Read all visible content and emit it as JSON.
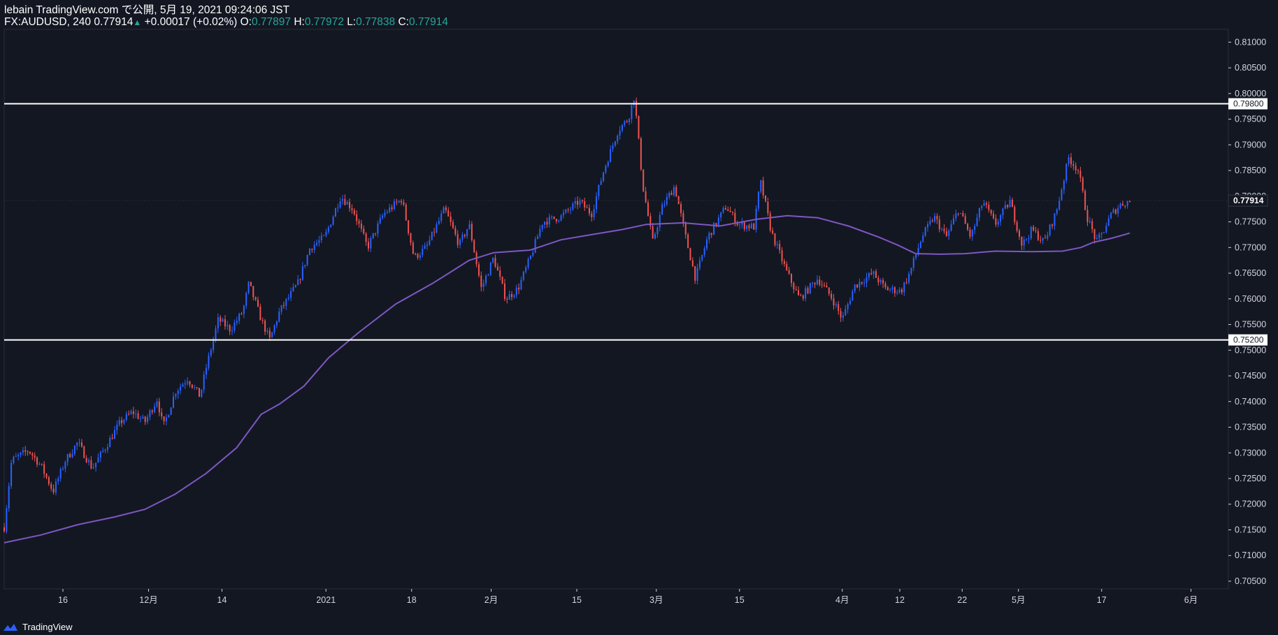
{
  "header": {
    "line1": "lebain TradingView.com で公開, 5月 19, 2021 09:24:06 JST",
    "symbol": "FX:AUDUSD, 240",
    "last": "0.77914",
    "arrow": "▲",
    "change": "+0.00017 (+0.02%)",
    "o_label": "O:",
    "o": "0.77897",
    "h_label": "H:",
    "h": "0.77972",
    "l_label": "L:",
    "l": "0.77838",
    "c_label": "C:",
    "c": "0.77914"
  },
  "footer": {
    "brand": "TradingView",
    "logo_icon": "tradingview-logo-icon"
  },
  "colors": {
    "background": "#131722",
    "up_candle": "#2962ff",
    "down_candle": "#ef5350",
    "moving_average": "#7e57c2",
    "horizontal_line": "#ffffff",
    "axis_text": "#d1d4dc",
    "border": "#363a45"
  },
  "chart_data": {
    "type": "candlestick",
    "symbol": "FX:AUDUSD",
    "timeframe": "240",
    "ylim": [
      0.7035,
      0.8125
    ],
    "y_ticks": [
      "0.81000",
      "0.80500",
      "0.80000",
      "0.79500",
      "0.79000",
      "0.78500",
      "0.78000",
      "0.77500",
      "0.77000",
      "0.76500",
      "0.76000",
      "0.75500",
      "0.75000",
      "0.74500",
      "0.74000",
      "0.73500",
      "0.73000",
      "0.72500",
      "0.72000",
      "0.71500",
      "0.71000",
      "0.70500"
    ],
    "x_ticks": [
      {
        "label": "16",
        "t": 0.048
      },
      {
        "label": "12月",
        "t": 0.118
      },
      {
        "label": "14",
        "t": 0.178
      },
      {
        "label": "2021",
        "t": 0.263
      },
      {
        "label": "18",
        "t": 0.333
      },
      {
        "label": "2月",
        "t": 0.398
      },
      {
        "label": "15",
        "t": 0.468
      },
      {
        "label": "3月",
        "t": 0.533
      },
      {
        "label": "15",
        "t": 0.601
      },
      {
        "label": "4月",
        "t": 0.685
      },
      {
        "label": "12",
        "t": 0.732
      },
      {
        "label": "22",
        "t": 0.783
      },
      {
        "label": "5月",
        "t": 0.829
      },
      {
        "label": "17",
        "t": 0.897
      },
      {
        "label": "6月",
        "t": 0.97
      }
    ],
    "last_price": "0.77914",
    "horizontal_levels": [
      {
        "price": 0.798,
        "label": "0.79800"
      },
      {
        "price": 0.752,
        "label": "0.75200"
      }
    ],
    "price_path": [
      [
        0.0,
        0.7155
      ],
      [
        0.006,
        0.7285
      ],
      [
        0.02,
        0.7305
      ],
      [
        0.03,
        0.7275
      ],
      [
        0.04,
        0.7225
      ],
      [
        0.05,
        0.7285
      ],
      [
        0.06,
        0.732
      ],
      [
        0.072,
        0.727
      ],
      [
        0.085,
        0.732
      ],
      [
        0.095,
        0.736
      ],
      [
        0.105,
        0.738
      ],
      [
        0.115,
        0.736
      ],
      [
        0.125,
        0.7405
      ],
      [
        0.13,
        0.735
      ],
      [
        0.14,
        0.742
      ],
      [
        0.15,
        0.7445
      ],
      [
        0.16,
        0.741
      ],
      [
        0.165,
        0.7465
      ],
      [
        0.175,
        0.756
      ],
      [
        0.185,
        0.754
      ],
      [
        0.195,
        0.7575
      ],
      [
        0.2,
        0.763
      ],
      [
        0.21,
        0.756
      ],
      [
        0.217,
        0.752
      ],
      [
        0.225,
        0.7575
      ],
      [
        0.24,
        0.763
      ],
      [
        0.25,
        0.77
      ],
      [
        0.262,
        0.772
      ],
      [
        0.275,
        0.78
      ],
      [
        0.285,
        0.7775
      ],
      [
        0.297,
        0.77
      ],
      [
        0.31,
        0.7765
      ],
      [
        0.325,
        0.7795
      ],
      [
        0.335,
        0.768
      ],
      [
        0.345,
        0.77
      ],
      [
        0.36,
        0.7775
      ],
      [
        0.372,
        0.7705
      ],
      [
        0.38,
        0.7745
      ],
      [
        0.39,
        0.762
      ],
      [
        0.4,
        0.768
      ],
      [
        0.41,
        0.76
      ],
      [
        0.42,
        0.762
      ],
      [
        0.43,
        0.768
      ],
      [
        0.44,
        0.775
      ],
      [
        0.455,
        0.776
      ],
      [
        0.47,
        0.779
      ],
      [
        0.48,
        0.7765
      ],
      [
        0.49,
        0.785
      ],
      [
        0.502,
        0.793
      ],
      [
        0.51,
        0.795
      ],
      [
        0.515,
        0.7995
      ],
      [
        0.522,
        0.782
      ],
      [
        0.53,
        0.771
      ],
      [
        0.538,
        0.778
      ],
      [
        0.548,
        0.782
      ],
      [
        0.557,
        0.772
      ],
      [
        0.565,
        0.764
      ],
      [
        0.575,
        0.772
      ],
      [
        0.59,
        0.778
      ],
      [
        0.6,
        0.7745
      ],
      [
        0.613,
        0.774
      ],
      [
        0.618,
        0.783
      ],
      [
        0.627,
        0.773
      ],
      [
        0.64,
        0.765
      ],
      [
        0.65,
        0.76
      ],
      [
        0.665,
        0.764
      ],
      [
        0.677,
        0.76
      ],
      [
        0.685,
        0.756
      ],
      [
        0.695,
        0.7625
      ],
      [
        0.71,
        0.765
      ],
      [
        0.72,
        0.762
      ],
      [
        0.733,
        0.7615
      ],
      [
        0.74,
        0.765
      ],
      [
        0.75,
        0.772
      ],
      [
        0.76,
        0.776
      ],
      [
        0.77,
        0.772
      ],
      [
        0.78,
        0.7775
      ],
      [
        0.79,
        0.772
      ],
      [
        0.8,
        0.779
      ],
      [
        0.81,
        0.7745
      ],
      [
        0.822,
        0.779
      ],
      [
        0.832,
        0.7705
      ],
      [
        0.84,
        0.7735
      ],
      [
        0.85,
        0.771
      ],
      [
        0.86,
        0.777
      ],
      [
        0.87,
        0.7875
      ],
      [
        0.878,
        0.785
      ],
      [
        0.885,
        0.776
      ],
      [
        0.893,
        0.771
      ],
      [
        0.898,
        0.773
      ],
      [
        0.905,
        0.7765
      ],
      [
        0.913,
        0.7785
      ],
      [
        0.92,
        0.779
      ]
    ],
    "moving_average": [
      [
        0.0,
        0.7125
      ],
      [
        0.03,
        0.714
      ],
      [
        0.06,
        0.716
      ],
      [
        0.09,
        0.7175
      ],
      [
        0.115,
        0.719
      ],
      [
        0.14,
        0.722
      ],
      [
        0.165,
        0.726
      ],
      [
        0.19,
        0.731
      ],
      [
        0.21,
        0.7375
      ],
      [
        0.225,
        0.7395
      ],
      [
        0.245,
        0.743
      ],
      [
        0.265,
        0.7485
      ],
      [
        0.29,
        0.7535
      ],
      [
        0.32,
        0.759
      ],
      [
        0.35,
        0.763
      ],
      [
        0.38,
        0.7675
      ],
      [
        0.4,
        0.769
      ],
      [
        0.43,
        0.7695
      ],
      [
        0.455,
        0.7715
      ],
      [
        0.48,
        0.7725
      ],
      [
        0.505,
        0.7735
      ],
      [
        0.525,
        0.7745
      ],
      [
        0.555,
        0.7748
      ],
      [
        0.585,
        0.7742
      ],
      [
        0.615,
        0.7755
      ],
      [
        0.64,
        0.7762
      ],
      [
        0.665,
        0.7758
      ],
      [
        0.69,
        0.7742
      ],
      [
        0.715,
        0.772
      ],
      [
        0.73,
        0.7705
      ],
      [
        0.745,
        0.7688
      ],
      [
        0.765,
        0.7687
      ],
      [
        0.785,
        0.7688
      ],
      [
        0.81,
        0.7693
      ],
      [
        0.84,
        0.7692
      ],
      [
        0.865,
        0.7693
      ],
      [
        0.88,
        0.77
      ],
      [
        0.89,
        0.771
      ],
      [
        0.905,
        0.7718
      ],
      [
        0.92,
        0.7728
      ]
    ]
  }
}
